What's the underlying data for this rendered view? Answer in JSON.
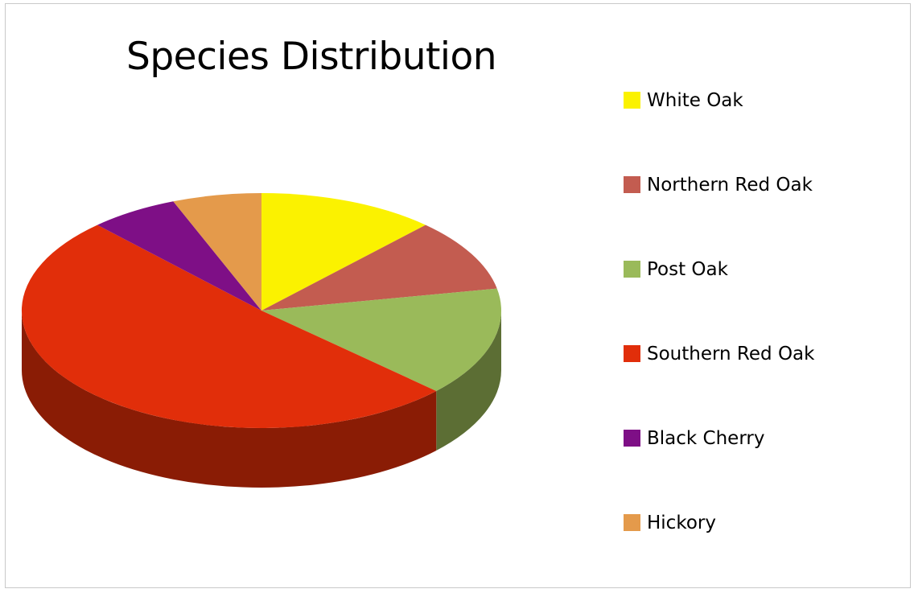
{
  "chart_data": {
    "type": "pie",
    "title": "Species Distribution",
    "style": "3d",
    "legend_position": "right",
    "categories": [
      "White Oak",
      "Northern Red Oak",
      "Post Oak",
      "Southern Red Oak",
      "Black Cherry",
      "Hickory"
    ],
    "values": [
      12,
      10,
      15,
      51,
      6,
      6
    ],
    "unit": "percent",
    "colors": [
      "#fbf200",
      "#c35c50",
      "#9aba5a",
      "#e12e0a",
      "#7e0f86",
      "#e49a4b"
    ],
    "side_colors": [
      "#b4ad00",
      "#7e3a33",
      "#5c6e34",
      "#8a1c05",
      "#4b0850",
      "#96622e"
    ]
  }
}
